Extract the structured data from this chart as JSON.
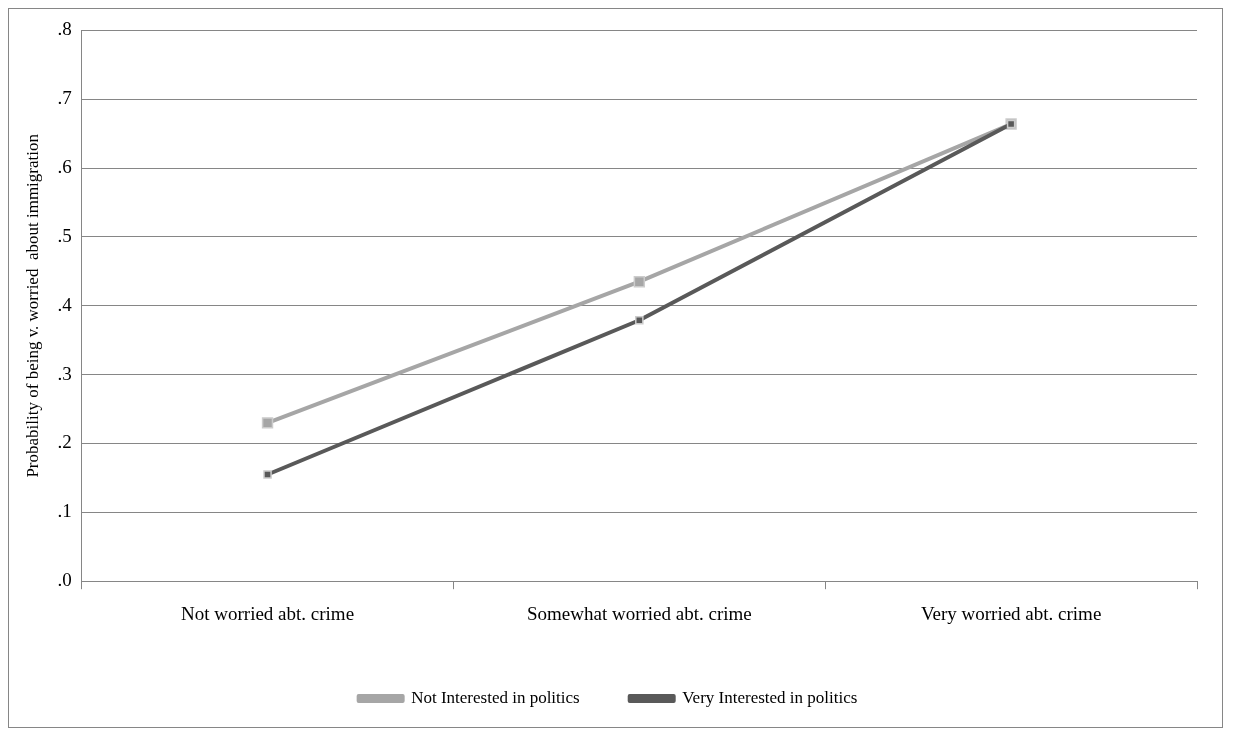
{
  "chart_data": {
    "type": "line",
    "ylabel": "Probability of being v. worried  about immigration",
    "categories": [
      "Not worried abt. crime",
      "Somewhat worried abt. crime",
      "Very worried abt. crime"
    ],
    "series": [
      {
        "name": "Not Interested in politics",
        "color": "#a6a6a6",
        "values": [
          0.23,
          0.435,
          0.664
        ]
      },
      {
        "name": "Very Interested in politics",
        "color": "#595959",
        "values": [
          0.155,
          0.379,
          0.664
        ]
      }
    ],
    "ylim": [
      0,
      0.8
    ],
    "yticks": [
      {
        "value": 0,
        "label": ".0"
      },
      {
        "value": 0.1,
        "label": ".1"
      },
      {
        "value": 0.2,
        "label": ".2"
      },
      {
        "value": 0.3,
        "label": ".3"
      },
      {
        "value": 0.4,
        "label": ".4"
      },
      {
        "value": 0.5,
        "label": ".5"
      },
      {
        "value": 0.6,
        "label": ".6"
      },
      {
        "value": 0.7,
        "label": ".7"
      },
      {
        "value": 0.8,
        "label": ".8"
      }
    ],
    "grid": "y",
    "legend": "bottom",
    "marker": "square",
    "line_style": "solid"
  }
}
